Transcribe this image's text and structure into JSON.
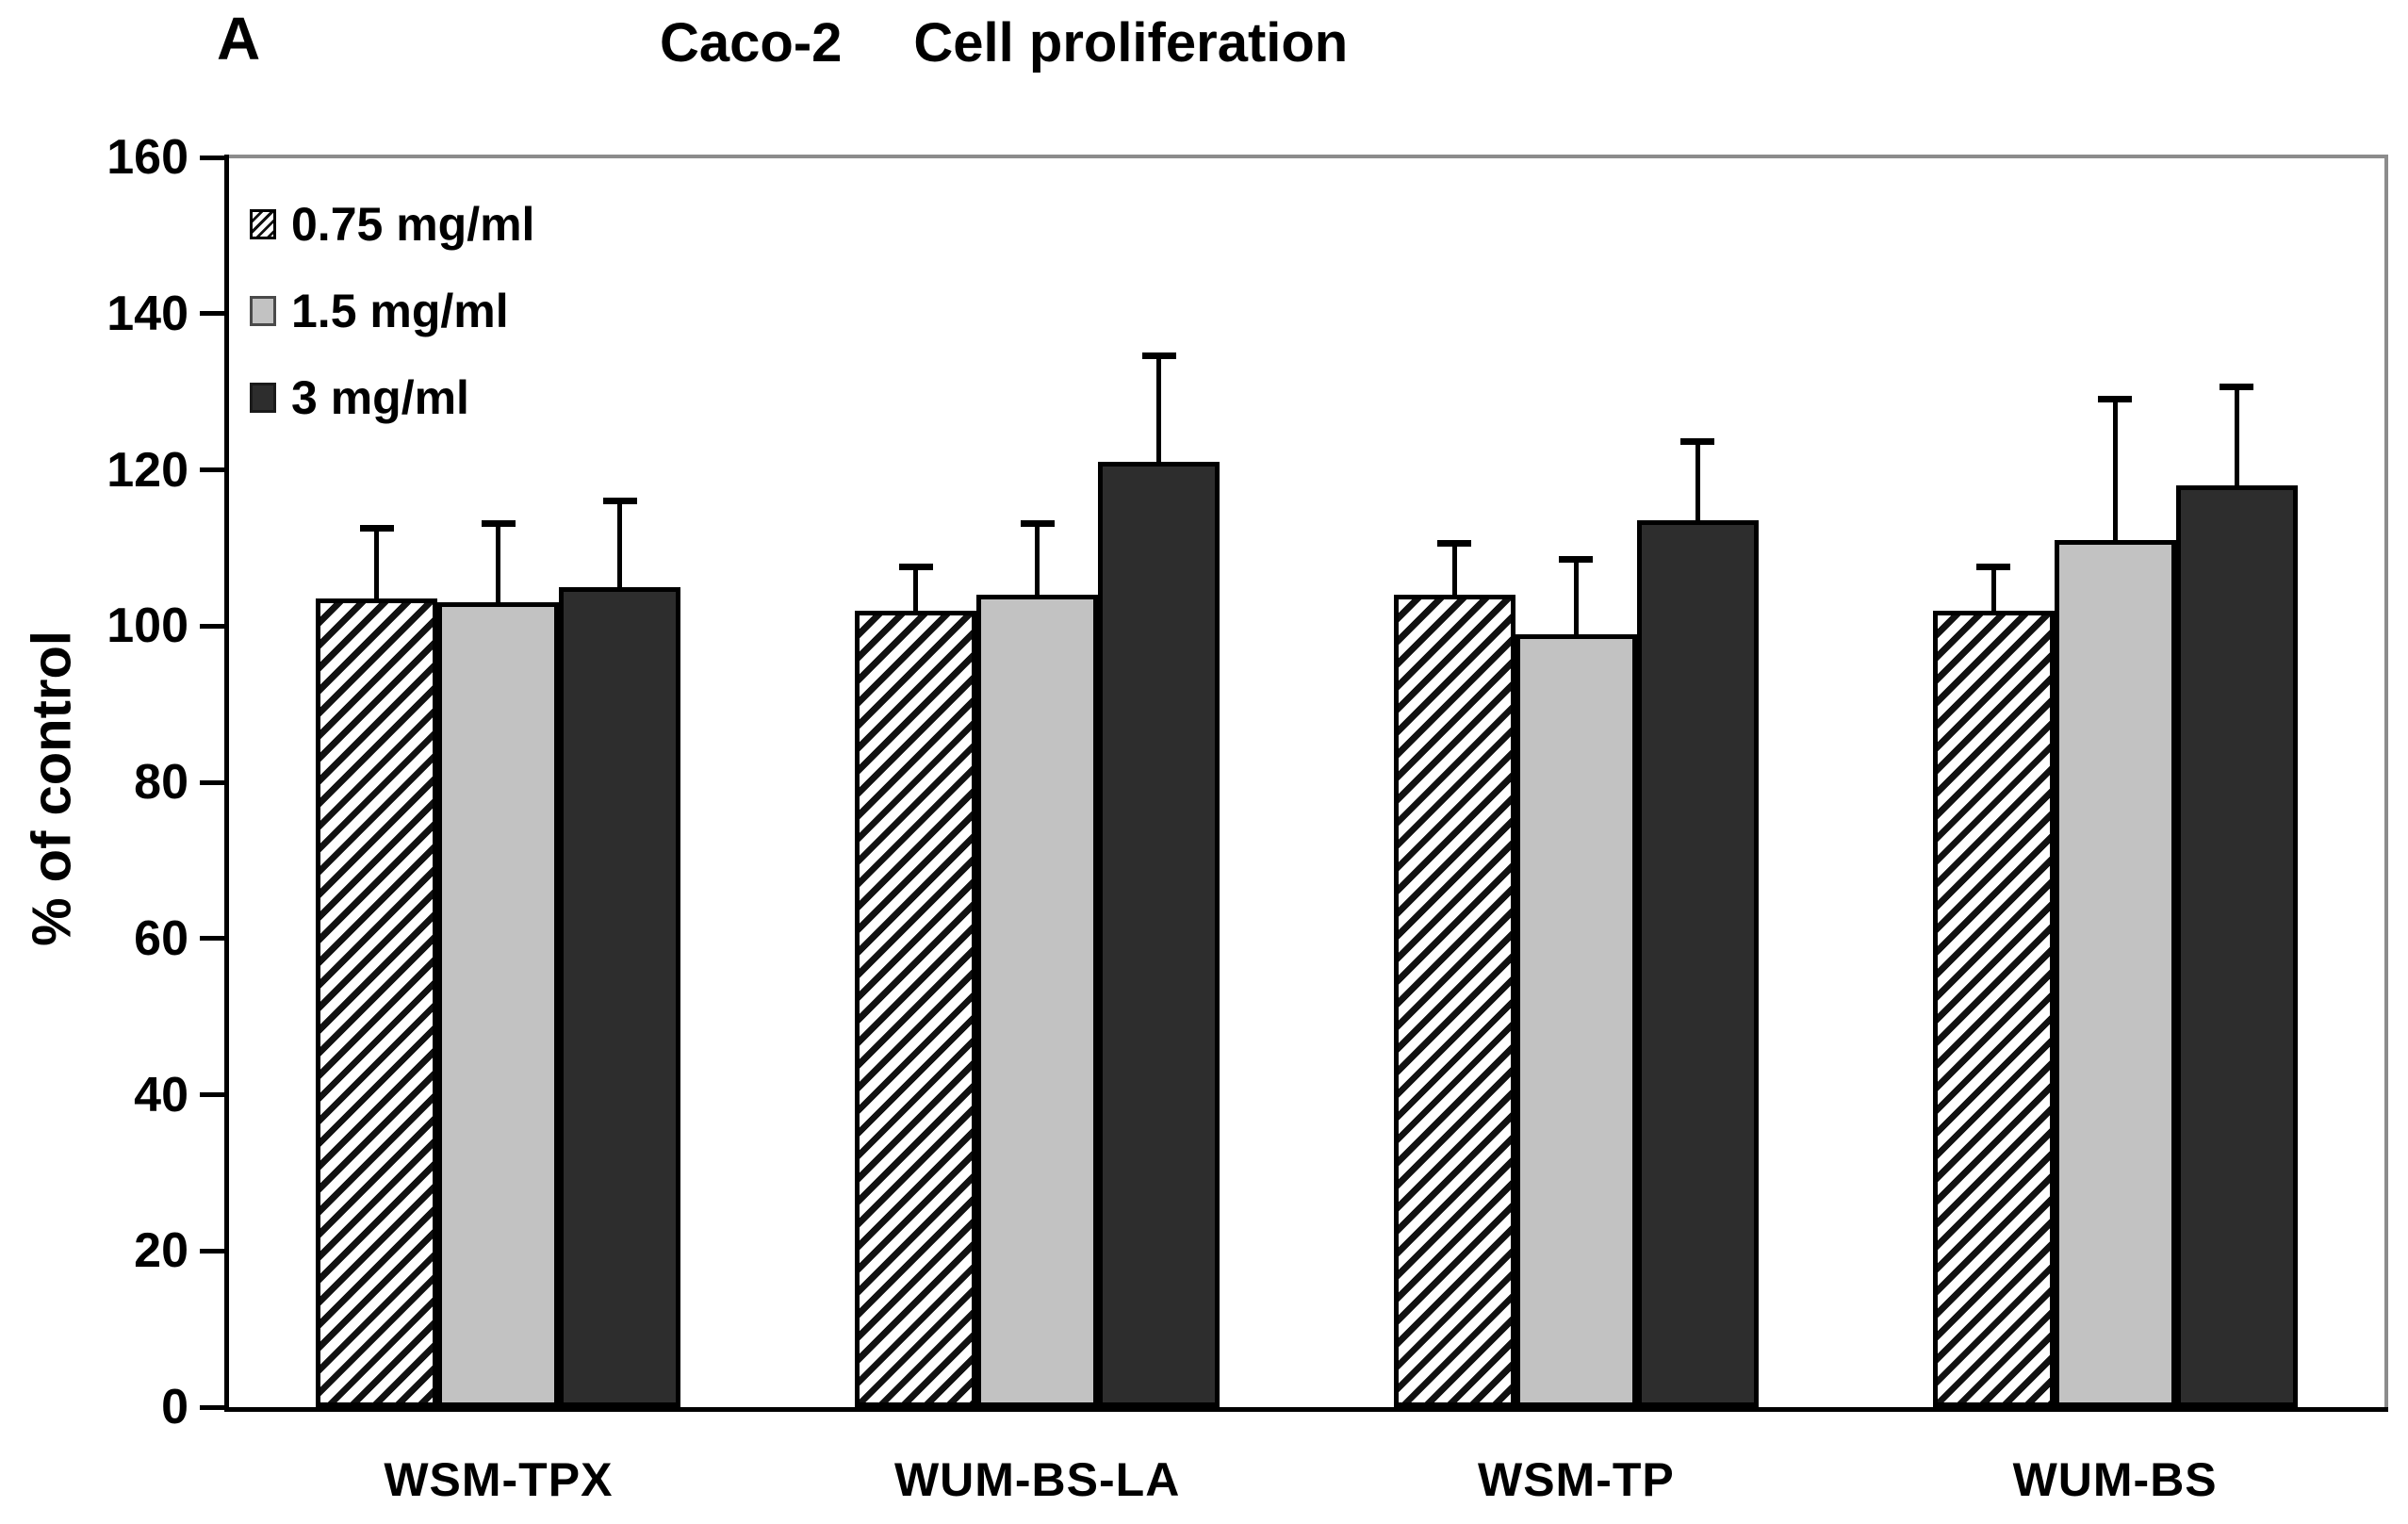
{
  "panel_label": "A",
  "title": {
    "part1": "Caco-2",
    "part2": "Cell proliferation"
  },
  "chart_data": {
    "type": "bar",
    "title": "Caco-2 Cell proliferation",
    "xlabel": "",
    "ylabel": "% of control",
    "ylim": [
      0,
      160
    ],
    "yticks": [
      0,
      20,
      40,
      60,
      80,
      100,
      120,
      140,
      160
    ],
    "grid": false,
    "legend_position": "top-left",
    "error_bars": "upper only",
    "categories": [
      "WSM-TPX",
      "WUM-BS-LA",
      "WSM-TP",
      "WUM-BS"
    ],
    "series": [
      {
        "name": "0.75 mg/ml",
        "style": "hatched",
        "values": [
          103.5,
          102,
          104,
          102
        ],
        "errors_plus": [
          9.5,
          6,
          7,
          6
        ]
      },
      {
        "name": "1.5 mg/ml",
        "style": "lightgray",
        "values": [
          103,
          104,
          99,
          111
        ],
        "errors_plus": [
          10.5,
          9.5,
          10,
          18.5
        ]
      },
      {
        "name": "3 mg/ml",
        "style": "dark",
        "values": [
          105,
          121,
          113.5,
          118
        ],
        "errors_plus": [
          11.5,
          14,
          10.5,
          13
        ]
      }
    ]
  },
  "colors": {
    "bar_light_gray": "#c2c2c2",
    "bar_dark": "#2d2d2d",
    "bar_border": "#000000",
    "axis": "#000000",
    "frame_gray": "#8c8c8c",
    "background": "#ffffff",
    "text": "#000000"
  }
}
